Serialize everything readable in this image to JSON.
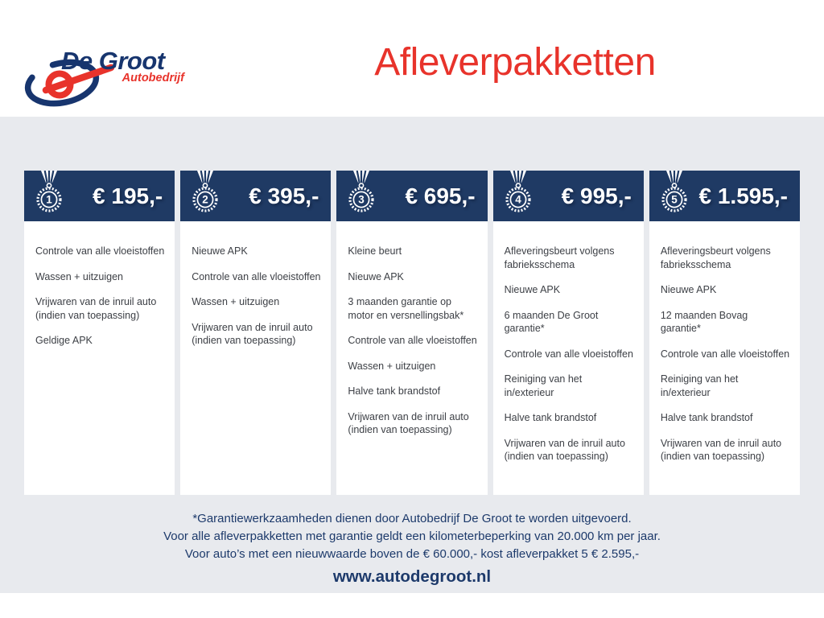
{
  "brand": {
    "name": "De Groot",
    "subtitle": "Autobedrijf",
    "swoosh_icon": "brand-swoosh-icon"
  },
  "header": {
    "title": "Afleverpakketten"
  },
  "packages": [
    {
      "number": "1",
      "medal_icon": "medal-icon",
      "price": "€ 195,-",
      "features": [
        "Controle van alle vloeistoffen",
        "Wassen + uitzuigen",
        "Vrijwaren van de inruil auto (indien van toepassing)",
        "Geldige APK"
      ]
    },
    {
      "number": "2",
      "medal_icon": "medal-icon",
      "price": "€ 395,-",
      "features": [
        "Nieuwe APK",
        "Controle van alle vloeistoffen",
        "Wassen + uitzuigen",
        "Vrijwaren van de inruil auto (indien van toepassing)"
      ]
    },
    {
      "number": "3",
      "medal_icon": "medal-icon",
      "price": "€ 695,-",
      "features": [
        "Kleine beurt",
        "Nieuwe APK",
        "3 maanden garantie op motor en versnellingsbak*",
        "Controle van alle vloeistoffen",
        "Wassen + uitzuigen",
        "Halve tank brandstof",
        "Vrijwaren van de inruil auto (indien van toepassing)"
      ]
    },
    {
      "number": "4",
      "medal_icon": "medal-icon",
      "price": "€ 995,-",
      "features": [
        "Afleveringsbeurt volgens fabrieksschema",
        "Nieuwe APK",
        "6 maanden De Groot garantie*",
        "Controle van alle vloeistoffen",
        "Reiniging van het in/exterieur",
        "Halve tank brandstof",
        "Vrijwaren van de inruil auto (indien van toepassing)"
      ]
    },
    {
      "number": "5",
      "medal_icon": "medal-icon",
      "price": "€ 1.595,-",
      "features": [
        "Afleveringsbeurt volgens fabrieksschema",
        "Nieuwe APK",
        "12 maanden Bovag garantie*",
        "Controle van alle vloeistoffen",
        "Reiniging van het in/exterieur",
        "Halve tank brandstof",
        "Vrijwaren van de inruil auto (indien van toepassing)"
      ]
    }
  ],
  "footer": {
    "notes": [
      "*Garantiewerkzaamheden dienen door Autobedrijf De Groot te worden uitgevoerd.",
      "Voor alle afleverpakketten met garantie geldt een kilometerbeperking van 20.000 km per jaar.",
      "Voor auto’s met een nieuwwaarde boven de € 60.000,- kost afleverpakket 5 € 2.595,-"
    ],
    "website": "www.autodegroot.nl"
  },
  "colors": {
    "navy": "#1f3a64",
    "logo_navy": "#17356e",
    "red": "#e8332b",
    "band_gray": "#e8eaee",
    "body_text": "#3d4046"
  }
}
